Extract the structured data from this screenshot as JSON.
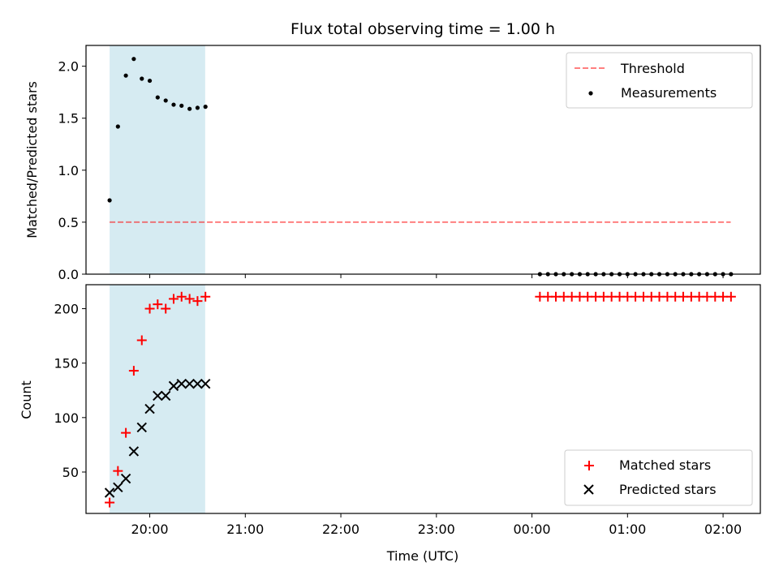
{
  "chart_data": [
    {
      "type": "scatter",
      "title": "Flux total observing time = 1.00 h",
      "xlabel": "",
      "ylabel": "Matched/Predicted stars",
      "ylim": [
        0,
        2.2
      ],
      "yticks": [
        "0.0",
        "0.5",
        "1.0",
        "1.5",
        "2.0"
      ],
      "xlim_hours": [
        19.333,
        26.39
      ],
      "xticks": [],
      "shaded_region_hours": [
        19.58,
        20.58
      ],
      "shaded_color": "#add8e6",
      "threshold": {
        "name": "Threshold",
        "y": 0.5,
        "x_range_hours": [
          19.58,
          26.08
        ],
        "color": "#ff0000",
        "style": "dashed"
      },
      "legend": {
        "placement": "top-right",
        "entries": [
          "Threshold",
          "Measurements"
        ]
      },
      "series": [
        {
          "name": "Measurements",
          "color": "#000000",
          "marker": "dot",
          "x_hours": [
            19.58,
            19.667,
            19.75,
            19.833,
            19.917,
            20.0,
            20.083,
            20.167,
            20.25,
            20.333,
            20.417,
            20.5,
            20.583,
            24.083,
            24.167,
            24.25,
            24.333,
            24.417,
            24.5,
            24.583,
            24.667,
            24.75,
            24.833,
            24.917,
            25.0,
            25.083,
            25.167,
            25.25,
            25.333,
            25.417,
            25.5,
            25.583,
            25.667,
            25.75,
            25.833,
            25.917,
            26.0,
            26.083
          ],
          "y": [
            0.71,
            1.42,
            1.91,
            2.07,
            1.88,
            1.86,
            1.7,
            1.67,
            1.63,
            1.62,
            1.59,
            1.6,
            1.61,
            0,
            0,
            0,
            0,
            0,
            0,
            0,
            0,
            0,
            0,
            0,
            0,
            0,
            0,
            0,
            0,
            0,
            0,
            0,
            0,
            0,
            0,
            0,
            0,
            0
          ]
        }
      ]
    },
    {
      "type": "scatter",
      "title": "",
      "xlabel": "Time (UTC)",
      "ylabel": "Count",
      "ylim": [
        12,
        222
      ],
      "yticks": [
        "50",
        "100",
        "150",
        "200"
      ],
      "xlim_hours": [
        19.333,
        26.39
      ],
      "xticks": [
        "20:00",
        "21:00",
        "22:00",
        "23:00",
        "00:00",
        "01:00",
        "02:00"
      ],
      "shaded_region_hours": [
        19.58,
        20.58
      ],
      "shaded_color": "#add8e6",
      "legend": {
        "placement": "bottom-right",
        "entries": [
          "Matched stars",
          "Predicted stars"
        ]
      },
      "series": [
        {
          "name": "Matched stars",
          "color": "#ff0000",
          "marker": "plus",
          "x_hours": [
            19.58,
            19.667,
            19.75,
            19.833,
            19.917,
            20.0,
            20.083,
            20.167,
            20.25,
            20.333,
            20.417,
            20.5,
            20.583,
            24.083,
            24.167,
            24.25,
            24.333,
            24.417,
            24.5,
            24.583,
            24.667,
            24.75,
            24.833,
            24.917,
            25.0,
            25.083,
            25.167,
            25.25,
            25.333,
            25.417,
            25.5,
            25.583,
            25.667,
            25.75,
            25.833,
            25.917,
            26.0,
            26.083
          ],
          "y": [
            22,
            51,
            86,
            143,
            171,
            200,
            204,
            200,
            209,
            211,
            209,
            207,
            211,
            211,
            211,
            211,
            211,
            211,
            211,
            211,
            211,
            211,
            211,
            211,
            211,
            211,
            211,
            211,
            211,
            211,
            211,
            211,
            211,
            211,
            211,
            211,
            211,
            211
          ]
        },
        {
          "name": "Predicted stars",
          "color": "#000000",
          "marker": "x",
          "x_hours": [
            19.58,
            19.667,
            19.75,
            19.833,
            19.917,
            20.0,
            20.083,
            20.167,
            20.25,
            20.333,
            20.417,
            20.5,
            20.583
          ],
          "y": [
            31,
            36,
            44,
            69,
            91,
            108,
            120,
            120,
            129,
            131,
            131,
            131,
            131
          ]
        }
      ]
    }
  ]
}
